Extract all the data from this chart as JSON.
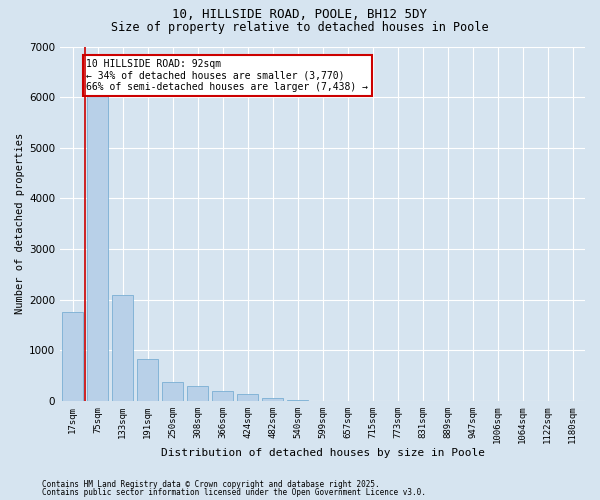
{
  "title1": "10, HILLSIDE ROAD, POOLE, BH12 5DY",
  "title2": "Size of property relative to detached houses in Poole",
  "xlabel": "Distribution of detached houses by size in Poole",
  "ylabel": "Number of detached properties",
  "categories": [
    "17sqm",
    "75sqm",
    "133sqm",
    "191sqm",
    "250sqm",
    "308sqm",
    "366sqm",
    "424sqm",
    "482sqm",
    "540sqm",
    "599sqm",
    "657sqm",
    "715sqm",
    "773sqm",
    "831sqm",
    "889sqm",
    "947sqm",
    "1006sqm",
    "1064sqm",
    "1122sqm",
    "1180sqm"
  ],
  "values": [
    1750,
    6050,
    2100,
    820,
    370,
    290,
    190,
    140,
    60,
    20,
    0,
    0,
    0,
    0,
    0,
    0,
    0,
    0,
    0,
    0,
    0
  ],
  "bar_color": "#b8d0e8",
  "bar_edge_color": "#7aafd4",
  "property_line_color": "#cc0000",
  "annotation_text": "10 HILLSIDE ROAD: 92sqm\n← 34% of detached houses are smaller (3,770)\n66% of semi-detached houses are larger (7,438) →",
  "annotation_box_color": "#ffffff",
  "annotation_box_edge_color": "#cc0000",
  "footnote1": "Contains HM Land Registry data © Crown copyright and database right 2025.",
  "footnote2": "Contains public sector information licensed under the Open Government Licence v3.0.",
  "background_color": "#d6e4f0",
  "plot_background_color": "#d6e4f0",
  "ylim": [
    0,
    7000
  ],
  "yticks": [
    0,
    1000,
    2000,
    3000,
    4000,
    5000,
    6000,
    7000
  ],
  "grid_color": "#ffffff",
  "title_fontsize": 9,
  "subtitle_fontsize": 8.5
}
